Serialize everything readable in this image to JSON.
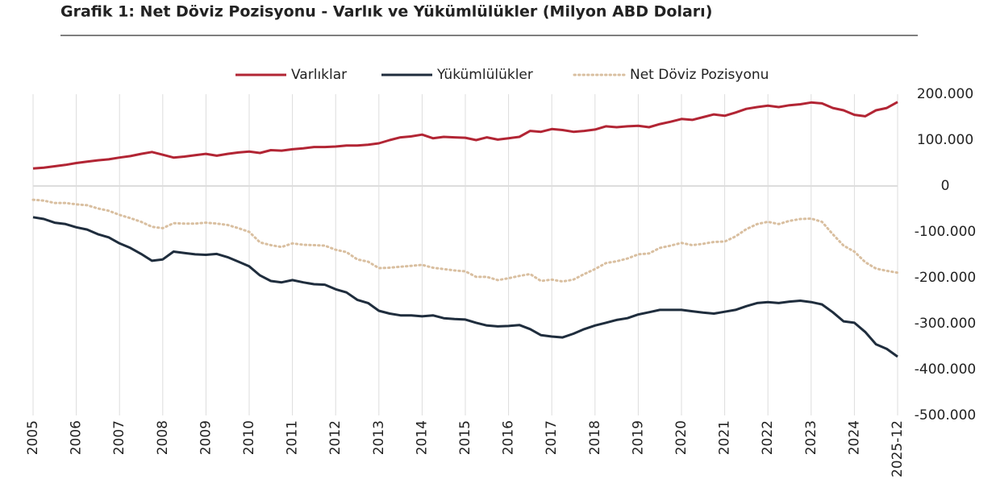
{
  "chart_data": {
    "type": "line",
    "title": "Grafik 1: Net Döviz Pozisyonu - Varlık ve Yükümlülükler (Milyon ABD Doları)",
    "categories": [
      "2005",
      null,
      null,
      null,
      "2006",
      null,
      null,
      null,
      "2007",
      null,
      null,
      null,
      "2008",
      null,
      null,
      null,
      "2009",
      null,
      null,
      null,
      "2010",
      null,
      null,
      null,
      "2011",
      null,
      null,
      null,
      "2012",
      null,
      null,
      null,
      "2013",
      null,
      null,
      null,
      "2014",
      null,
      null,
      null,
      "2015",
      null,
      null,
      null,
      "2016",
      null,
      null,
      null,
      "2017",
      null,
      null,
      null,
      "2018",
      null,
      null,
      null,
      "2019",
      null,
      null,
      null,
      "2020",
      null,
      null,
      null,
      "2021",
      null,
      null,
      null,
      "2022",
      null,
      null,
      null,
      "2023",
      null,
      null,
      null,
      "2024",
      null,
      null,
      null,
      "2025-12"
    ],
    "series": [
      {
        "name": "Varlıklar",
        "color": "#b22534",
        "style": "solid",
        "values": [
          38000,
          40000,
          43000,
          46000,
          50000,
          53000,
          56000,
          58000,
          62000,
          65000,
          70000,
          74000,
          68000,
          62000,
          64000,
          67000,
          70000,
          66000,
          70000,
          73000,
          75000,
          72000,
          78000,
          77000,
          80000,
          82000,
          85000,
          85000,
          86000,
          88000,
          88000,
          90000,
          93000,
          100000,
          106000,
          108000,
          112000,
          104000,
          107000,
          106000,
          105000,
          100000,
          106000,
          101000,
          104000,
          107000,
          120000,
          118000,
          124000,
          122000,
          118000,
          120000,
          123000,
          130000,
          128000,
          130000,
          131000,
          128000,
          135000,
          140000,
          146000,
          144000,
          150000,
          156000,
          153000,
          160000,
          168000,
          172000,
          175000,
          172000,
          176000,
          178000,
          182000,
          180000,
          170000,
          165000,
          155000,
          152000,
          165000,
          170000,
          183000
        ]
      },
      {
        "name": "Yükümlülükler",
        "color": "#1f2d3d",
        "style": "solid",
        "values": [
          -68000,
          -72000,
          -80000,
          -83000,
          -90000,
          -95000,
          -105000,
          -112000,
          -125000,
          -135000,
          -148000,
          -163000,
          -160000,
          -143000,
          -146000,
          -149000,
          -150000,
          -148000,
          -155000,
          -165000,
          -175000,
          -195000,
          -207000,
          -210000,
          -205000,
          -210000,
          -214000,
          -215000,
          -225000,
          -232000,
          -248000,
          -255000,
          -272000,
          -278000,
          -282000,
          -282000,
          -284000,
          -282000,
          -288000,
          -290000,
          -291000,
          -298000,
          -304000,
          -306000,
          -305000,
          -303000,
          -312000,
          -325000,
          -328000,
          -330000,
          -322000,
          -312000,
          -304000,
          -298000,
          -292000,
          -288000,
          -280000,
          -275000,
          -270000,
          -270000,
          -270000,
          -273000,
          -276000,
          -278000,
          -274000,
          -270000,
          -262000,
          -255000,
          -253000,
          -255000,
          -252000,
          -250000,
          -253000,
          -258000,
          -275000,
          -295000,
          -298000,
          -318000,
          -345000,
          -355000,
          -372000
        ]
      },
      {
        "name": "Net Döviz Pozisyonu",
        "color": "#d9bfa0",
        "style": "dotted",
        "values": [
          -30000,
          -32000,
          -37000,
          -37000,
          -40000,
          -42000,
          -49000,
          -54000,
          -63000,
          -70000,
          -78000,
          -89000,
          -92000,
          -81000,
          -82000,
          -82000,
          -80000,
          -82000,
          -85000,
          -92000,
          -100000,
          -123000,
          -129000,
          -133000,
          -125000,
          -128000,
          -129000,
          -130000,
          -139000,
          -144000,
          -160000,
          -165000,
          -179000,
          -178000,
          -176000,
          -174000,
          -172000,
          -178000,
          -181000,
          -184000,
          -186000,
          -198000,
          -198000,
          -205000,
          -201000,
          -196000,
          -192000,
          -207000,
          -204000,
          -208000,
          -204000,
          -192000,
          -181000,
          -168000,
          -164000,
          -158000,
          -149000,
          -147000,
          -135000,
          -130000,
          -124000,
          -129000,
          -126000,
          -122000,
          -121000,
          -110000,
          -94000,
          -83000,
          -78000,
          -83000,
          -76000,
          -72000,
          -71000,
          -78000,
          -105000,
          -130000,
          -143000,
          -166000,
          -180000,
          -185000,
          -189000
        ]
      }
    ],
    "ylim": [
      -500000,
      200000
    ],
    "yticks": [
      {
        "value": -500000,
        "label": "-500.000"
      },
      {
        "value": -400000,
        "label": "-400.000"
      },
      {
        "value": -300000,
        "label": "-300.000"
      },
      {
        "value": -200000,
        "label": "-200.000"
      },
      {
        "value": -100000,
        "label": "-100.000"
      },
      0,
      {
        "value": 100000,
        "label": "100.000"
      },
      {
        "value": 200000,
        "label": "200.000"
      }
    ],
    "grid": "x",
    "legend": "top"
  }
}
